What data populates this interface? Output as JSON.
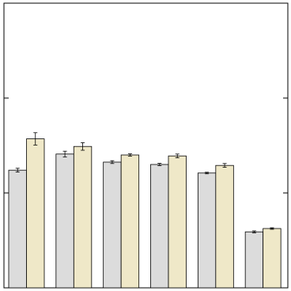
{
  "chart_data": {
    "type": "bar",
    "categories": [
      null,
      null,
      null,
      null,
      null,
      null
    ],
    "series": [
      {
        "color": "#dcdcdc",
        "values": [
          1.24,
          1.41,
          1.325,
          1.3,
          1.21,
          0.59
        ],
        "errors": [
          0.02,
          0.03,
          0.015,
          0.012,
          0.008,
          0.01
        ]
      },
      {
        "color": "#efe8c8",
        "values": [
          1.57,
          1.49,
          1.4,
          1.39,
          1.29,
          0.625
        ],
        "errors": [
          0.065,
          0.04,
          0.012,
          0.02,
          0.02,
          0.008
        ]
      }
    ],
    "ylim": [
      0,
      3
    ],
    "yticks": [
      0,
      1,
      2,
      3
    ],
    "grid": false
  }
}
